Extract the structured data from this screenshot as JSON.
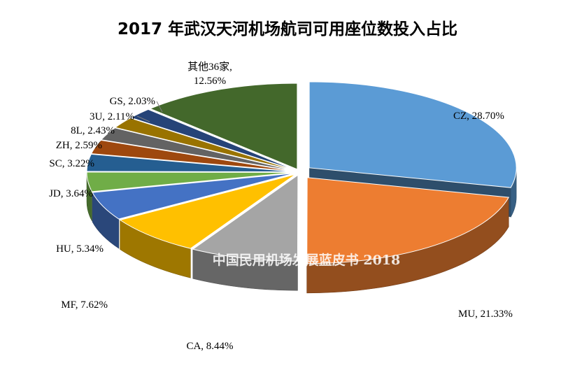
{
  "chart_data": {
    "type": "pie",
    "style": "3d-exploded",
    "title": "2017 年武汉天河机场航司可用座位数投入占比",
    "watermark": "中国民用机场发展蓝皮书 2018",
    "unit": "%",
    "slices": [
      {
        "name": "CZ",
        "value": 28.7,
        "label": "CZ, 28.70%",
        "color": "#5b9bd5"
      },
      {
        "name": "MU",
        "value": 21.33,
        "label": "MU, 21.33%",
        "color": "#ed7d31"
      },
      {
        "name": "CA",
        "value": 8.44,
        "label": "CA, 8.44%",
        "color": "#a5a5a5"
      },
      {
        "name": "MF",
        "value": 7.62,
        "label": "MF, 7.62%",
        "color": "#ffc000"
      },
      {
        "name": "HU",
        "value": 5.34,
        "label": "HU, 5.34%",
        "color": "#4472c4"
      },
      {
        "name": "JD",
        "value": 3.64,
        "label": "JD, 3.64%",
        "color": "#70ad47"
      },
      {
        "name": "SC",
        "value": 3.22,
        "label": "SC, 3.22%",
        "color": "#255e91"
      },
      {
        "name": "ZH",
        "value": 2.59,
        "label": "ZH, 2.59%",
        "color": "#9e480e"
      },
      {
        "name": "8L",
        "value": 2.43,
        "label": "8L, 2.43%",
        "color": "#636363"
      },
      {
        "name": "3U",
        "value": 2.11,
        "label": "3U, 2.11%",
        "color": "#997300"
      },
      {
        "name": "GS",
        "value": 2.03,
        "label": "GS, 2.03%",
        "color": "#264478"
      },
      {
        "name": "其他36家",
        "value": 12.56,
        "label": "其他36家,\n12.56%",
        "color": "#43682b"
      }
    ]
  }
}
